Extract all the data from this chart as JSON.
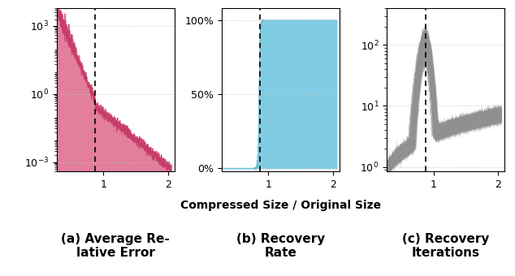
{
  "title_a": "(a) Average Re-\nlative Error",
  "title_b": "(b) Recovery\nRate",
  "title_c": "(c) Recovery\nIterations",
  "xlabel": "Compressed Size / Original Size",
  "dashed_line_x": 0.875,
  "color_a": "#e07090",
  "color_b": "#72c8e0",
  "color_c": "#a8a8a8",
  "color_edge_a": "#c03060",
  "color_edge_c": "#909090",
  "grid_color": "#c8c8c8",
  "background": "#ffffff",
  "title_fontsize": 11,
  "label_fontsize": 10
}
